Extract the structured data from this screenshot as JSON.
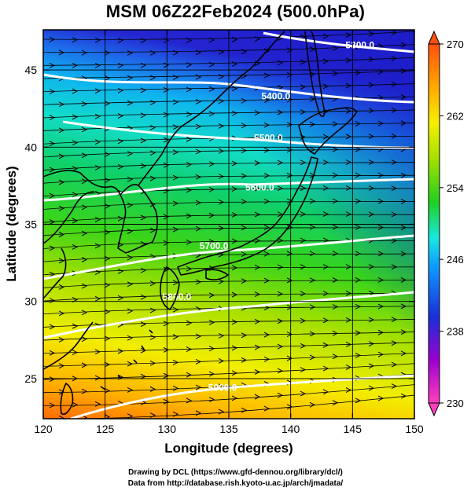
{
  "title": "MSM 06Z22Feb2024 (500.0hPa)",
  "map": {
    "x_label": "Longitude (degrees)",
    "y_label": "Latitude  (degrees)",
    "lon_ticks": [
      "120",
      "125",
      "130",
      "135",
      "140",
      "145",
      "150"
    ],
    "lat_ticks": [
      "25",
      "30",
      "35",
      "40",
      "45"
    ],
    "lon_range": [
      120,
      150
    ],
    "lat_range": [
      22.4,
      47.6
    ],
    "variable": "temperature (color) with geopotential height contours and wind streamlines",
    "contour_labels": [
      {
        "text": "5400.0",
        "lon": 138.8,
        "lat": 43.1
      },
      {
        "text": "5500.0",
        "lon": 138.2,
        "lat": 40.4
      },
      {
        "text": "5600.0",
        "lon": 137.5,
        "lat": 37.2
      },
      {
        "text": "5700.0",
        "lon": 133.8,
        "lat": 33.4
      },
      {
        "text": "5800.0",
        "lon": 130.8,
        "lat": 30.1
      },
      {
        "text": "5900.0",
        "lon": 134.5,
        "lat": 24.2
      },
      {
        "text": "5300.0",
        "lon": 145.6,
        "lat": 46.4
      }
    ]
  },
  "colorbar": {
    "tick_labels": [
      "270",
      "262",
      "254",
      "246",
      "238",
      "230"
    ],
    "min": 230,
    "max": 270,
    "colors": [
      "#ff3fbf",
      "#9b00d0",
      "#1a2fd8",
      "#0e9aff",
      "#18e8e0",
      "#20d020",
      "#a4e000",
      "#f6f000",
      "#ffa800",
      "#ff5010"
    ]
  },
  "credits": {
    "line1": "Drawing by DCL (https://www.gfd-dennou.org/library/dcl/)",
    "line2": "Data from http://database.rish.kyoto-u.ac.jp/arch/jmadata/"
  }
}
